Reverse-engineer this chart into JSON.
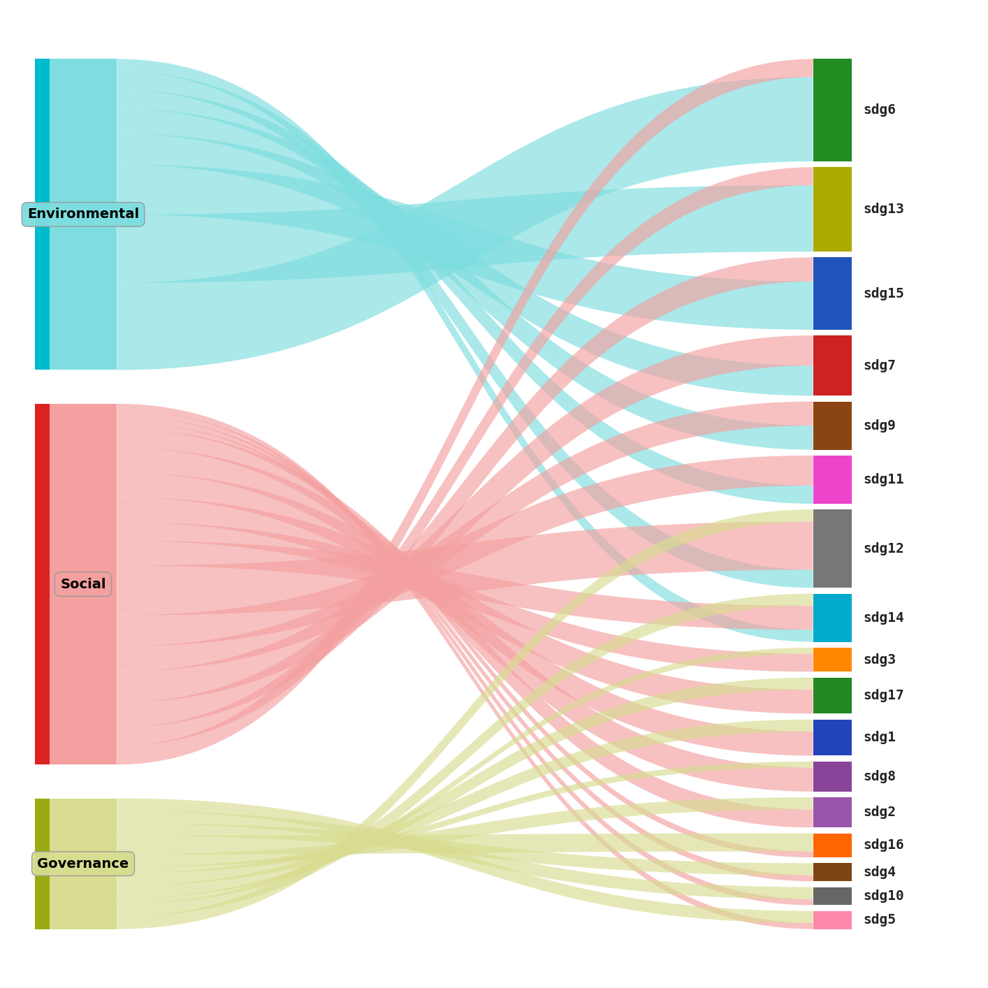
{
  "sources": [
    "Environmental",
    "Social",
    "Governance"
  ],
  "source_colors": [
    "#7DDDDF",
    "#F4A0A0",
    "#D8DC90"
  ],
  "source_border_colors": [
    "#00BBCC",
    "#DD2222",
    "#9AAA10"
  ],
  "sdgs": [
    "sdg6",
    "sdg13",
    "sdg15",
    "sdg7",
    "sdg9",
    "sdg11",
    "sdg12",
    "sdg14",
    "sdg3",
    "sdg17",
    "sdg1",
    "sdg8",
    "sdg2",
    "sdg16",
    "sdg4",
    "sdg10",
    "sdg5"
  ],
  "sdg_colors": [
    "#228B22",
    "#AAAA00",
    "#2255BB",
    "#CC2222",
    "#8B4513",
    "#EE44CC",
    "#777777",
    "#00AACC",
    "#FF8800",
    "#228822",
    "#2244BB",
    "#884499",
    "#9955AA",
    "#FF6600",
    "#7B4513",
    "#666666",
    "#FF88AA"
  ],
  "flows_env": {
    "sdg6": 14,
    "sdg13": 11,
    "sdg15": 8,
    "sdg7": 5,
    "sdg9": 4,
    "sdg11": 3,
    "sdg12": 3,
    "sdg14": 2,
    "sdg3": 0,
    "sdg17": 0,
    "sdg1": 0,
    "sdg8": 0,
    "sdg2": 0,
    "sdg16": 0,
    "sdg4": 0,
    "sdg10": 0,
    "sdg5": 0
  },
  "flows_soc": {
    "sdg6": 3,
    "sdg13": 3,
    "sdg15": 4,
    "sdg7": 5,
    "sdg9": 4,
    "sdg11": 5,
    "sdg12": 8,
    "sdg14": 4,
    "sdg3": 3,
    "sdg17": 4,
    "sdg1": 4,
    "sdg8": 4,
    "sdg2": 3,
    "sdg16": 1,
    "sdg4": 1,
    "sdg10": 1,
    "sdg5": 1
  },
  "flows_gov": {
    "sdg6": 0,
    "sdg13": 0,
    "sdg15": 0,
    "sdg7": 0,
    "sdg9": 0,
    "sdg11": 0,
    "sdg12": 2,
    "sdg14": 2,
    "sdg3": 1,
    "sdg17": 2,
    "sdg1": 2,
    "sdg8": 1,
    "sdg2": 2,
    "sdg16": 3,
    "sdg4": 2,
    "sdg10": 2,
    "sdg5": 2
  },
  "fig_width": 14.14,
  "fig_height": 14.14,
  "bg_color": "#FFFFFF",
  "flow_alpha": 0.65
}
